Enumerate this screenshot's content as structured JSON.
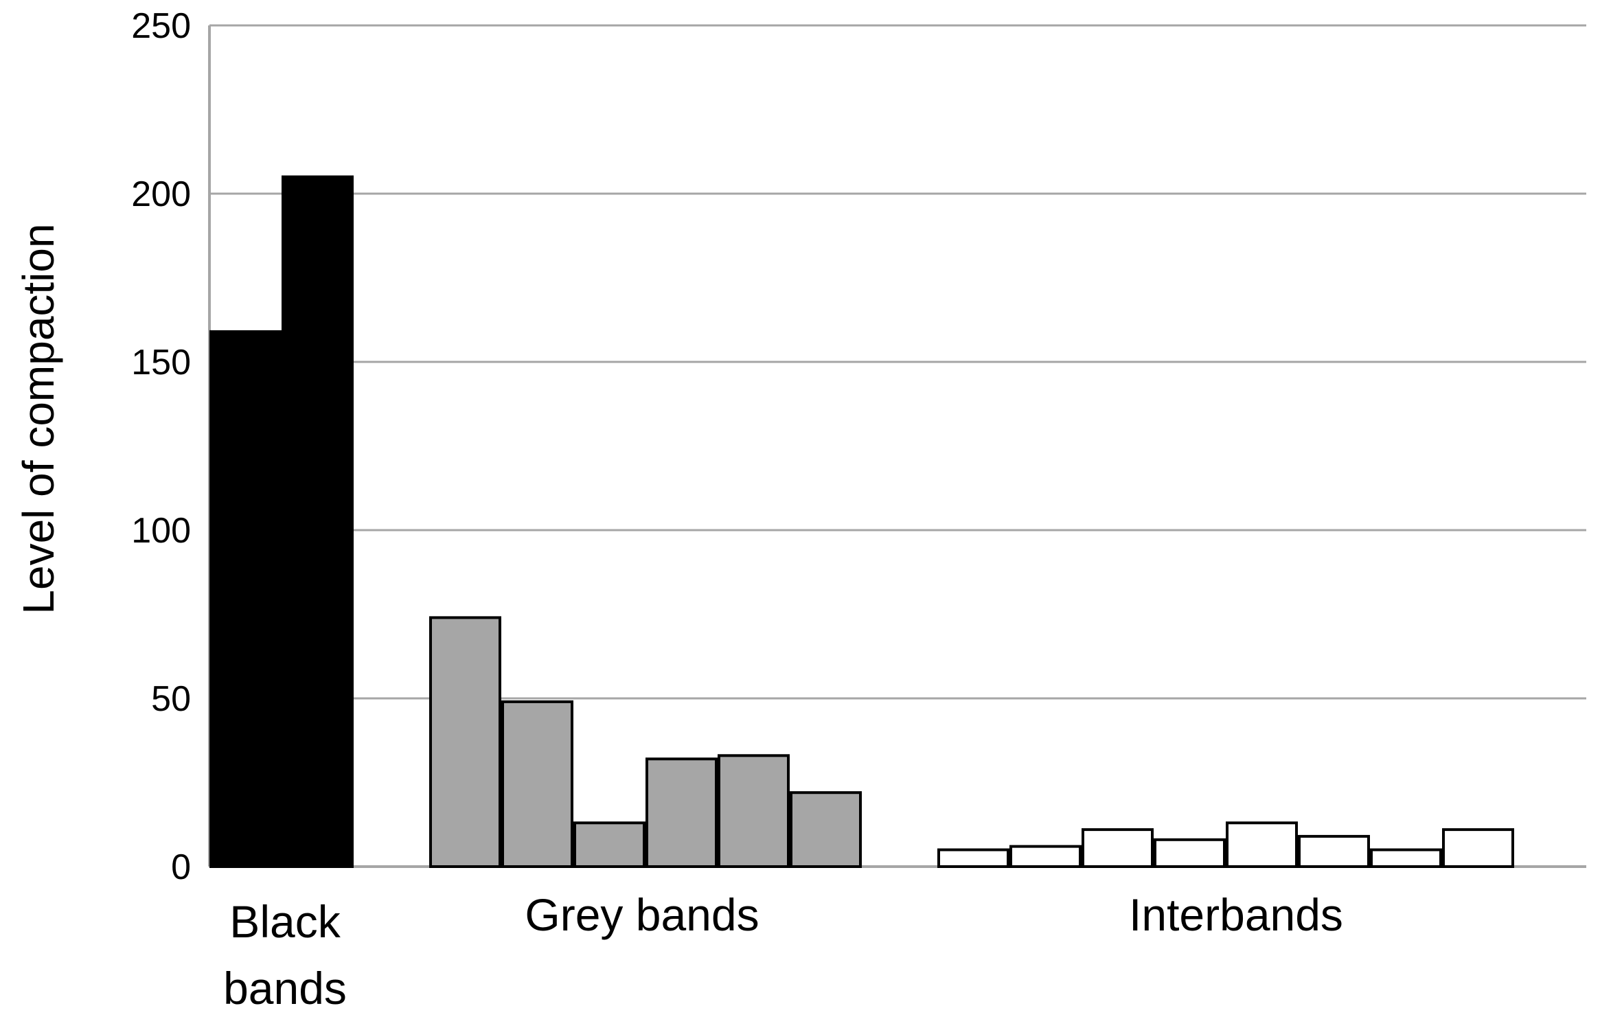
{
  "chart_data": {
    "type": "bar",
    "title": "",
    "xlabel": "",
    "ylabel": "Level of compaction",
    "ylim": [
      0,
      250
    ],
    "yticks": [
      0,
      50,
      100,
      150,
      200,
      250
    ],
    "grid": true,
    "legend": "none",
    "groups": [
      {
        "name_lines": [
          "Black",
          "bands"
        ],
        "color": "#000000",
        "values": [
          159,
          205
        ]
      },
      {
        "name_lines": [
          "Grey bands"
        ],
        "color": "#a6a6a6",
        "values": [
          74,
          49,
          13,
          32,
          33,
          22
        ]
      },
      {
        "name_lines": [
          "Interbands"
        ],
        "color": "#ffffff",
        "values": [
          5,
          6,
          11,
          8,
          13,
          9,
          5,
          11
        ]
      }
    ],
    "colors": {
      "grid": "#a6a6a6",
      "bar_outline": "#000000"
    }
  }
}
